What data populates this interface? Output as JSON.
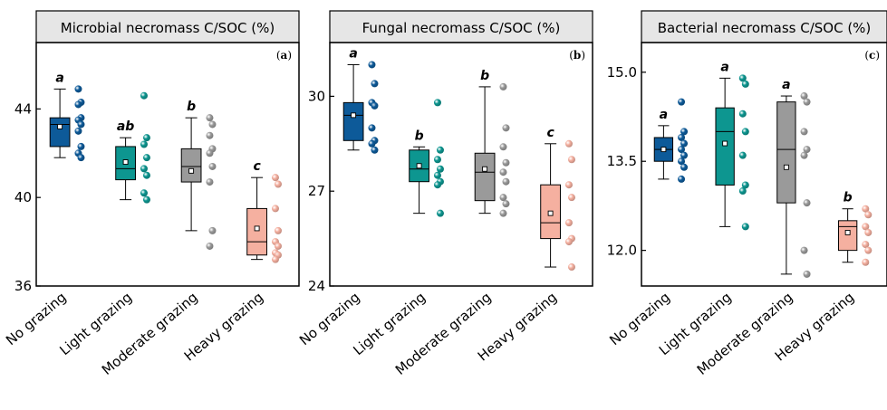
{
  "categories": [
    "No grazing",
    "Light grazing",
    "Moderate grazing",
    "Heavy grazing"
  ],
  "colors": {
    "No grazing": "#0d5a99",
    "Light grazing": "#0d9690",
    "Moderate grazing": "#9a9a9a",
    "Heavy grazing": "#f5b0a0"
  },
  "chart_data": [
    {
      "type": "box",
      "title": "Microbial necromass C/SOC (%)",
      "panel_label": "a",
      "ylim": [
        36,
        47
      ],
      "yticks": [
        36,
        40,
        44
      ],
      "categories": [
        "No grazing",
        "Light grazing",
        "Moderate grazing",
        "Heavy grazing"
      ],
      "boxes": [
        {
          "min": 41.8,
          "q1": 42.3,
          "median": 43.3,
          "q3": 43.6,
          "max": 44.9,
          "mean": 43.2,
          "letter": "a",
          "points": [
            44.9,
            44.3,
            44.2,
            43.6,
            43.5,
            43.3,
            43.0,
            42.3,
            42.0,
            41.8
          ]
        },
        {
          "min": 39.9,
          "q1": 40.8,
          "median": 41.3,
          "q3": 42.3,
          "max": 42.7,
          "mean": 41.6,
          "letter": "ab",
          "points": [
            44.6,
            42.7,
            42.4,
            41.8,
            41.3,
            41.0,
            40.2,
            39.9
          ]
        },
        {
          "min": 38.5,
          "q1": 40.7,
          "median": 41.4,
          "q3": 42.2,
          "max": 43.6,
          "mean": 41.2,
          "letter": "b",
          "points": [
            43.6,
            43.3,
            42.8,
            42.2,
            42.0,
            41.4,
            40.7,
            38.5,
            37.8
          ]
        },
        {
          "min": 37.2,
          "q1": 37.4,
          "median": 38.0,
          "q3": 39.5,
          "max": 40.9,
          "mean": 38.6,
          "letter": "c",
          "points": [
            40.9,
            40.6,
            39.5,
            38.5,
            38.0,
            37.8,
            37.5,
            37.4,
            37.2
          ]
        }
      ]
    },
    {
      "type": "box",
      "title": "Fungal necromass C/SOC (%)",
      "panel_label": "b",
      "ylim": [
        24,
        31.7
      ],
      "yticks": [
        24,
        27,
        30
      ],
      "categories": [
        "No grazing",
        "Light grazing",
        "Moderate grazing",
        "Heavy grazing"
      ],
      "boxes": [
        {
          "min": 28.3,
          "q1": 28.6,
          "median": 29.4,
          "q3": 29.8,
          "max": 31.0,
          "mean": 29.4,
          "letter": "a",
          "points": [
            31.0,
            30.4,
            29.8,
            29.7,
            29.0,
            28.6,
            28.5,
            28.3
          ]
        },
        {
          "min": 26.3,
          "q1": 27.3,
          "median": 27.7,
          "q3": 28.3,
          "max": 28.4,
          "mean": 27.8,
          "letter": "b",
          "points": [
            29.8,
            28.3,
            28.0,
            27.7,
            27.5,
            27.3,
            27.2,
            26.3
          ]
        },
        {
          "min": 26.3,
          "q1": 26.7,
          "median": 27.6,
          "q3": 28.2,
          "max": 30.3,
          "mean": 27.7,
          "letter": "b",
          "points": [
            30.3,
            29.0,
            28.4,
            27.9,
            27.6,
            27.3,
            26.8,
            26.6,
            26.3
          ]
        },
        {
          "min": 24.6,
          "q1": 25.5,
          "median": 26.0,
          "q3": 27.2,
          "max": 28.5,
          "mean": 26.3,
          "letter": "c",
          "points": [
            28.5,
            28.0,
            27.2,
            26.8,
            26.0,
            25.5,
            25.4,
            24.6
          ]
        }
      ]
    },
    {
      "type": "box",
      "title": "Bacterial necromass C/SOC (%)",
      "panel_label": "c",
      "ylim": [
        11.4,
        15.5
      ],
      "yticks": [
        12.0,
        13.5,
        15.0
      ],
      "tick_format": "fixed1",
      "categories": [
        "No grazing",
        "Light grazing",
        "Moderate grazing",
        "Heavy grazing"
      ],
      "boxes": [
        {
          "min": 13.2,
          "q1": 13.5,
          "median": 13.7,
          "q3": 13.9,
          "max": 14.1,
          "mean": 13.7,
          "letter": "a",
          "points": [
            14.5,
            14.0,
            13.9,
            13.8,
            13.7,
            13.6,
            13.5,
            13.4,
            13.2
          ]
        },
        {
          "min": 12.4,
          "q1": 13.1,
          "median": 14.0,
          "q3": 14.4,
          "max": 14.9,
          "mean": 13.8,
          "letter": "a",
          "points": [
            14.9,
            14.8,
            14.3,
            14.0,
            13.6,
            13.1,
            13.0,
            12.4
          ]
        },
        {
          "min": 11.6,
          "q1": 12.8,
          "median": 13.7,
          "q3": 14.5,
          "max": 14.6,
          "mean": 13.4,
          "letter": "a",
          "points": [
            14.6,
            14.5,
            14.0,
            13.7,
            13.6,
            12.8,
            12.0,
            11.6
          ]
        },
        {
          "min": 11.8,
          "q1": 12.0,
          "median": 12.4,
          "q3": 12.5,
          "max": 12.7,
          "mean": 12.3,
          "letter": "b",
          "points": [
            12.7,
            12.6,
            12.4,
            12.3,
            12.1,
            12.0,
            11.8
          ]
        }
      ]
    }
  ]
}
